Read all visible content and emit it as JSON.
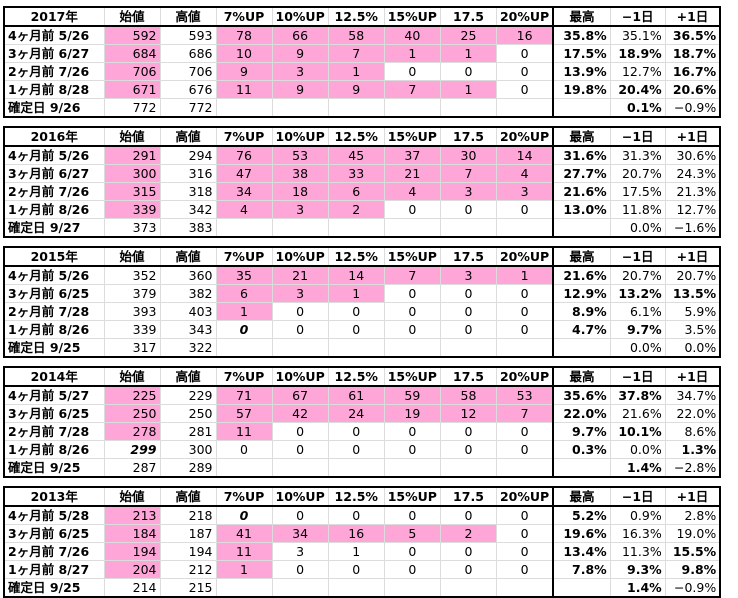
{
  "colors": {
    "pink": "#ffa6d9",
    "faint": "#c8c8c8"
  },
  "blocks": [
    {
      "headers": [
        "2017年",
        "始値",
        "高値",
        "7%UP",
        "10%UP",
        "12.5%",
        "15%UP",
        "17.5",
        "20%UP",
        "最高",
        "−1日",
        "+1日"
      ],
      "rows": [
        {
          "label": "4ヶ月前 5/26",
          "open": "592",
          "openStyle": "pink-gray",
          "high": "593",
          "ups": [
            "78",
            "66",
            "58",
            "40",
            "25",
            "16"
          ],
          "upsPink": 6,
          "max": "35.8%",
          "prev": "35.1%",
          "prevStyle": "gray",
          "next": "36.5%",
          "nextStyle": "bold"
        },
        {
          "label": "3ヶ月前 6/27",
          "open": "684",
          "openStyle": "pink-gray",
          "high": "686",
          "ups": [
            "10",
            "9",
            "7",
            "1",
            "1",
            "0"
          ],
          "upsPink": 5,
          "max": "17.5%",
          "prev": "18.9%",
          "prevStyle": "bold",
          "next": "18.7%",
          "nextStyle": "bold"
        },
        {
          "label": "2ヶ月前 7/26",
          "open": "706",
          "openStyle": "pink-gray",
          "high": "706",
          "ups": [
            "9",
            "3",
            "1",
            "0",
            "0",
            "0"
          ],
          "upsPink": 3,
          "max": "13.9%",
          "prev": "12.7%",
          "prevStyle": "gray",
          "next": "16.7%",
          "nextStyle": "bold"
        },
        {
          "label": "1ヶ月前 8/28",
          "open": "671",
          "openStyle": "pink-gray",
          "high": "676",
          "ups": [
            "11",
            "9",
            "9",
            "7",
            "1",
            "0"
          ],
          "upsPink": 5,
          "max": "19.8%",
          "prev": "20.4%",
          "prevStyle": "bold",
          "next": "20.6%",
          "nextStyle": "bold"
        },
        {
          "label": "確定日 9/26",
          "open": "772",
          "openStyle": "plain",
          "high": "772",
          "ups": [
            "",
            "",
            "",
            "",
            "",
            ""
          ],
          "upsPink": 0,
          "max": "",
          "prev": "0.1%",
          "prevStyle": "bold",
          "next": "−0.9%",
          "nextStyle": "gray"
        }
      ]
    },
    {
      "headers": [
        "2016年",
        "始値",
        "高値",
        "7%UP",
        "10%UP",
        "12.5%",
        "15%UP",
        "17.5",
        "20%UP",
        "最高",
        "−1日",
        "+1日"
      ],
      "rows": [
        {
          "label": "4ヶ月前 5/26",
          "open": "291",
          "openStyle": "pink",
          "high": "294",
          "ups": [
            "76",
            "53",
            "45",
            "37",
            "30",
            "14"
          ],
          "upsPink": 6,
          "max": "31.6%",
          "prev": "31.3%",
          "prevStyle": "gray",
          "next": "30.6%",
          "nextStyle": "gray"
        },
        {
          "label": "3ヶ月前 6/27",
          "open": "300",
          "openStyle": "pink-gray",
          "high": "316",
          "ups": [
            "47",
            "38",
            "33",
            "21",
            "7",
            "4"
          ],
          "upsPink": 6,
          "max": "27.7%",
          "prev": "20.7%",
          "prevStyle": "gray",
          "next": "24.3%",
          "nextStyle": "gray"
        },
        {
          "label": "2ヶ月前 7/26",
          "open": "315",
          "openStyle": "pink-gray",
          "high": "318",
          "ups": [
            "34",
            "18",
            "6",
            "4",
            "3",
            "3"
          ],
          "upsPink": 6,
          "max": "21.6%",
          "prev": "17.5%",
          "prevStyle": "gray",
          "next": "21.3%",
          "nextStyle": "gray"
        },
        {
          "label": "1ヶ月前 8/26",
          "open": "339",
          "openStyle": "pink-gray",
          "high": "342",
          "ups": [
            "4",
            "3",
            "2",
            "0",
            "0",
            "0"
          ],
          "upsPink": 3,
          "max": "13.0%",
          "prev": "11.8%",
          "prevStyle": "gray",
          "next": "12.7%",
          "nextStyle": "gray"
        },
        {
          "label": "確定日 9/27",
          "open": "373",
          "openStyle": "plain",
          "high": "383",
          "ups": [
            "",
            "",
            "",
            "",
            "",
            ""
          ],
          "upsPink": 0,
          "max": "",
          "prev": "0.0%",
          "prevStyle": "plain",
          "next": "−1.6%",
          "nextStyle": "gray"
        }
      ]
    },
    {
      "headers": [
        "2015年",
        "始値",
        "高値",
        "7%UP",
        "10%UP",
        "12.5%",
        "15%UP",
        "17.5",
        "20%UP",
        "最高",
        "−1日",
        "+1日"
      ],
      "rows": [
        {
          "label": "4ヶ月前 5/26",
          "open": "352",
          "openStyle": "plain",
          "high": "360",
          "ups": [
            "35",
            "21",
            "14",
            "7",
            "3",
            "1"
          ],
          "upsPink": 6,
          "max": "21.6%",
          "prev": "20.7%",
          "prevStyle": "gray",
          "next": "20.7%",
          "nextStyle": "gray"
        },
        {
          "label": "3ヶ月前 6/25",
          "open": "379",
          "openStyle": "plain",
          "high": "382",
          "ups": [
            "6",
            "3",
            "1",
            "0",
            "0",
            "0"
          ],
          "upsPink": 3,
          "max": "12.9%",
          "prev": "13.2%",
          "prevStyle": "bold",
          "next": "13.5%",
          "nextStyle": "bold"
        },
        {
          "label": "2ヶ月前 7/28",
          "open": "393",
          "openStyle": "plain",
          "high": "403",
          "ups": [
            "1",
            "0",
            "0",
            "0",
            "0",
            "0"
          ],
          "upsPink": 1,
          "max": "8.9%",
          "prev": "6.1%",
          "prevStyle": "gray",
          "next": "5.9%",
          "nextStyle": "gray"
        },
        {
          "label": "1ヶ月前 8/26",
          "open": "339",
          "openStyle": "plain",
          "high": "343",
          "ups": [
            "0",
            "0",
            "0",
            "0",
            "0",
            "0"
          ],
          "upsPink": 0,
          "upsFirstItalic": true,
          "max": "4.7%",
          "prev": "9.7%",
          "prevStyle": "bold",
          "next": "3.5%",
          "nextStyle": "gray"
        },
        {
          "label": "確定日 9/25",
          "open": "317",
          "openStyle": "plain",
          "high": "322",
          "ups": [
            "",
            "",
            "",
            "",
            "",
            ""
          ],
          "upsPink": 0,
          "max": "",
          "prev": "0.0%",
          "prevStyle": "plain",
          "next": "0.0%",
          "nextStyle": "plain"
        }
      ]
    },
    {
      "headers": [
        "2014年",
        "始値",
        "高値",
        "7%UP",
        "10%UP",
        "12.5%",
        "15%UP",
        "17.5",
        "20%UP",
        "最高",
        "−1日",
        "+1日"
      ],
      "rows": [
        {
          "label": "4ヶ月前 5/27",
          "open": "225",
          "openStyle": "pink-gray",
          "high": "229",
          "ups": [
            "71",
            "67",
            "61",
            "59",
            "58",
            "53"
          ],
          "upsPink": 6,
          "upsGray": 2,
          "max": "35.6%",
          "prev": "37.8%",
          "prevStyle": "bold",
          "next": "34.7%",
          "nextStyle": "gray"
        },
        {
          "label": "3ヶ月前 6/25",
          "open": "250",
          "openStyle": "pink-gray",
          "high": "250",
          "ups": [
            "57",
            "42",
            "24",
            "19",
            "12",
            "7"
          ],
          "upsPink": 6,
          "upsGray": 1,
          "max": "22.0%",
          "prev": "21.6%",
          "prevStyle": "gray",
          "next": "22.0%",
          "nextStyle": "plain"
        },
        {
          "label": "2ヶ月前 7/28",
          "open": "278",
          "openStyle": "pink",
          "high": "281",
          "ups": [
            "11",
            "0",
            "0",
            "0",
            "0",
            "0"
          ],
          "upsPink": 1,
          "max": "9.7%",
          "prev": "10.1%",
          "prevStyle": "bold",
          "next": "8.6%",
          "nextStyle": "gray"
        },
        {
          "label": "1ヶ月前 8/26",
          "open": "299",
          "openStyle": "italic",
          "high": "300",
          "ups": [
            "0",
            "0",
            "0",
            "0",
            "0",
            "0"
          ],
          "upsPink": 0,
          "max": "0.3%",
          "prev": "0.0%",
          "prevStyle": "gray",
          "next": "1.3%",
          "nextStyle": "bold"
        },
        {
          "label": "確定日 9/25",
          "open": "287",
          "openStyle": "plain",
          "high": "289",
          "ups": [
            "",
            "",
            "",
            "",
            "",
            ""
          ],
          "upsPink": 0,
          "max": "",
          "prev": "1.4%",
          "prevStyle": "bold",
          "next": "−2.8%",
          "nextStyle": "gray"
        }
      ]
    },
    {
      "headers": [
        "2013年",
        "始値",
        "高値",
        "7%UP",
        "10%UP",
        "12.5%",
        "15%UP",
        "17.5",
        "20%UP",
        "最高",
        "−1日",
        "+1日"
      ],
      "rows": [
        {
          "label": "4ヶ月前 5/28",
          "open": "213",
          "openStyle": "pink-gray",
          "high": "218",
          "ups": [
            "0",
            "0",
            "0",
            "0",
            "0",
            "0"
          ],
          "upsPink": 0,
          "upsFirstItalic": true,
          "max": "5.2%",
          "prev": "0.9%",
          "prevStyle": "gray",
          "next": "2.8%",
          "nextStyle": "gray"
        },
        {
          "label": "3ヶ月前 6/25",
          "open": "184",
          "openStyle": "pink-gray",
          "high": "187",
          "ups": [
            "41",
            "34",
            "16",
            "5",
            "2",
            "0"
          ],
          "upsPink": 5,
          "upsGray": 3,
          "max": "19.6%",
          "prev": "16.3%",
          "prevStyle": "gray",
          "next": "19.0%",
          "nextStyle": "gray"
        },
        {
          "label": "2ヶ月前 7/26",
          "open": "194",
          "openStyle": "pink-gray",
          "high": "194",
          "ups": [
            "11",
            "3",
            "1",
            "0",
            "0",
            "0"
          ],
          "upsPink": 1,
          "max": "13.4%",
          "prev": "11.3%",
          "prevStyle": "gray",
          "next": "15.5%",
          "nextStyle": "bold"
        },
        {
          "label": "1ヶ月前 8/27",
          "open": "204",
          "openStyle": "pink-gray",
          "high": "212",
          "ups": [
            "1",
            "0",
            "0",
            "0",
            "0",
            "0"
          ],
          "upsPink": 1,
          "upsGray": 1,
          "max": "7.8%",
          "prev": "9.3%",
          "prevStyle": "bold",
          "next": "9.8%",
          "nextStyle": "bold"
        },
        {
          "label": "確定日 9/25",
          "open": "214",
          "openStyle": "plain",
          "high": "215",
          "ups": [
            "",
            "",
            "",
            "",
            "",
            ""
          ],
          "upsPink": 0,
          "max": "",
          "prev": "1.4%",
          "prevStyle": "bold",
          "next": "−0.9%",
          "nextStyle": "gray"
        }
      ]
    }
  ]
}
